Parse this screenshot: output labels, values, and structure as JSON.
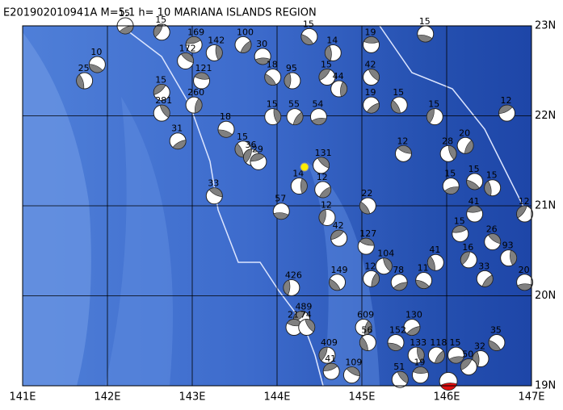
{
  "map": {
    "title": "E201902010941A  M=5.1  h= 10  MARIANA ISLANDS REGION",
    "xlim": [
      141,
      147
    ],
    "ylim": [
      19,
      23
    ],
    "xticks": [
      {
        "value": 141,
        "label": "141E"
      },
      {
        "value": 142,
        "label": "142E"
      },
      {
        "value": 143,
        "label": "143E"
      },
      {
        "value": 144,
        "label": "144E"
      },
      {
        "value": 145,
        "label": "145E"
      },
      {
        "value": 146,
        "label": "146E"
      },
      {
        "value": 147,
        "label": "147E"
      }
    ],
    "yticks": [
      {
        "value": 19,
        "label": "19N"
      },
      {
        "value": 20,
        "label": "20N"
      },
      {
        "value": 21,
        "label": "21N"
      },
      {
        "value": 22,
        "label": "22N"
      },
      {
        "value": 23,
        "label": "23N"
      }
    ],
    "main_event": {
      "lon": 146.02,
      "lat": 19.05
    },
    "events": [
      {
        "lon": 142.21,
        "lat": 23.0,
        "depth": 15
      },
      {
        "lon": 141.88,
        "lat": 22.57,
        "depth": 10
      },
      {
        "lon": 141.73,
        "lat": 22.39,
        "depth": 25
      },
      {
        "lon": 142.64,
        "lat": 22.93,
        "depth": 15
      },
      {
        "lon": 143.02,
        "lat": 22.79,
        "depth": 169
      },
      {
        "lon": 142.92,
        "lat": 22.61,
        "depth": 172
      },
      {
        "lon": 143.26,
        "lat": 22.7,
        "depth": 142
      },
      {
        "lon": 143.6,
        "lat": 22.79,
        "depth": 100
      },
      {
        "lon": 143.83,
        "lat": 22.66,
        "depth": 30
      },
      {
        "lon": 143.95,
        "lat": 22.43,
        "depth": 18
      },
      {
        "lon": 144.18,
        "lat": 22.39,
        "depth": 95
      },
      {
        "lon": 142.64,
        "lat": 22.26,
        "depth": 15
      },
      {
        "lon": 143.11,
        "lat": 22.39,
        "depth": 121
      },
      {
        "lon": 142.64,
        "lat": 22.03,
        "depth": 281
      },
      {
        "lon": 143.02,
        "lat": 22.12,
        "depth": 260
      },
      {
        "lon": 142.83,
        "lat": 21.72,
        "depth": 31
      },
      {
        "lon": 143.4,
        "lat": 21.85,
        "depth": 18
      },
      {
        "lon": 143.6,
        "lat": 21.63,
        "depth": 15
      },
      {
        "lon": 143.7,
        "lat": 21.54,
        "depth": 36
      },
      {
        "lon": 143.78,
        "lat": 21.49,
        "depth": 29
      },
      {
        "lon": 143.26,
        "lat": 21.11,
        "depth": 33
      },
      {
        "lon": 143.95,
        "lat": 21.99,
        "depth": 15
      },
      {
        "lon": 144.21,
        "lat": 21.99,
        "depth": 55
      },
      {
        "lon": 144.49,
        "lat": 21.99,
        "depth": 54
      },
      {
        "lon": 144.38,
        "lat": 22.88,
        "depth": 15
      },
      {
        "lon": 144.66,
        "lat": 22.7,
        "depth": 14
      },
      {
        "lon": 144.59,
        "lat": 22.43,
        "depth": 15
      },
      {
        "lon": 145.11,
        "lat": 22.79,
        "depth": 19
      },
      {
        "lon": 145.11,
        "lat": 22.43,
        "depth": 42
      },
      {
        "lon": 144.73,
        "lat": 22.3,
        "depth": 44
      },
      {
        "lon": 145.11,
        "lat": 22.12,
        "depth": 19
      },
      {
        "lon": 145.75,
        "lat": 22.91,
        "depth": 15
      },
      {
        "lon": 145.44,
        "lat": 22.12,
        "depth": 15
      },
      {
        "lon": 145.86,
        "lat": 21.99,
        "depth": 15
      },
      {
        "lon": 146.71,
        "lat": 22.03,
        "depth": 12
      },
      {
        "lon": 145.49,
        "lat": 21.58,
        "depth": 12
      },
      {
        "lon": 146.02,
        "lat": 21.58,
        "depth": 28
      },
      {
        "lon": 146.22,
        "lat": 21.67,
        "depth": 20
      },
      {
        "lon": 146.05,
        "lat": 21.22,
        "depth": 15
      },
      {
        "lon": 146.33,
        "lat": 21.27,
        "depth": 15
      },
      {
        "lon": 146.54,
        "lat": 21.2,
        "depth": 15
      },
      {
        "lon": 146.92,
        "lat": 20.91,
        "depth": 12
      },
      {
        "lon": 146.33,
        "lat": 20.91,
        "depth": 41
      },
      {
        "lon": 144.52,
        "lat": 21.45,
        "depth": 131
      },
      {
        "lon": 144.26,
        "lat": 21.22,
        "depth": 14
      },
      {
        "lon": 144.54,
        "lat": 21.18,
        "depth": 12
      },
      {
        "lon": 144.05,
        "lat": 20.94,
        "depth": 57
      },
      {
        "lon": 145.07,
        "lat": 21.0,
        "depth": 22
      },
      {
        "lon": 144.59,
        "lat": 20.87,
        "depth": 12
      },
      {
        "lon": 144.73,
        "lat": 20.64,
        "depth": 42
      },
      {
        "lon": 145.05,
        "lat": 20.55,
        "depth": 127
      },
      {
        "lon": 145.26,
        "lat": 20.33,
        "depth": 104
      },
      {
        "lon": 145.11,
        "lat": 20.19,
        "depth": 12
      },
      {
        "lon": 145.44,
        "lat": 20.15,
        "depth": 78
      },
      {
        "lon": 145.73,
        "lat": 20.17,
        "depth": 11
      },
      {
        "lon": 145.87,
        "lat": 20.37,
        "depth": 41
      },
      {
        "lon": 146.26,
        "lat": 20.4,
        "depth": 16
      },
      {
        "lon": 146.16,
        "lat": 20.69,
        "depth": 15
      },
      {
        "lon": 146.54,
        "lat": 20.6,
        "depth": 26
      },
      {
        "lon": 146.73,
        "lat": 20.42,
        "depth": 93
      },
      {
        "lon": 146.45,
        "lat": 20.19,
        "depth": 33
      },
      {
        "lon": 146.92,
        "lat": 20.15,
        "depth": 20
      },
      {
        "lon": 144.71,
        "lat": 20.15,
        "depth": 149
      },
      {
        "lon": 144.17,
        "lat": 20.09,
        "depth": 426
      },
      {
        "lon": 144.29,
        "lat": 19.74,
        "depth": 489
      },
      {
        "lon": 144.2,
        "lat": 19.65,
        "depth": 21
      },
      {
        "lon": 144.35,
        "lat": 19.65,
        "depth": 74
      },
      {
        "lon": 145.02,
        "lat": 19.65,
        "depth": 609
      },
      {
        "lon": 145.59,
        "lat": 19.65,
        "depth": 130
      },
      {
        "lon": 145.4,
        "lat": 19.48,
        "depth": 152
      },
      {
        "lon": 145.07,
        "lat": 19.48,
        "depth": 56
      },
      {
        "lon": 144.59,
        "lat": 19.34,
        "depth": 409
      },
      {
        "lon": 144.64,
        "lat": 19.16,
        "depth": 41
      },
      {
        "lon": 144.88,
        "lat": 19.12,
        "depth": 109
      },
      {
        "lon": 145.64,
        "lat": 19.34,
        "depth": 133
      },
      {
        "lon": 145.88,
        "lat": 19.34,
        "depth": 118
      },
      {
        "lon": 146.11,
        "lat": 19.34,
        "depth": 15
      },
      {
        "lon": 146.59,
        "lat": 19.48,
        "depth": 35
      },
      {
        "lon": 146.4,
        "lat": 19.3,
        "depth": 32
      },
      {
        "lon": 146.26,
        "lat": 19.21,
        "depth": 50
      },
      {
        "lon": 145.69,
        "lat": 19.12,
        "depth": 19
      },
      {
        "lon": 145.45,
        "lat": 19.07,
        "depth": 51
      }
    ]
  }
}
